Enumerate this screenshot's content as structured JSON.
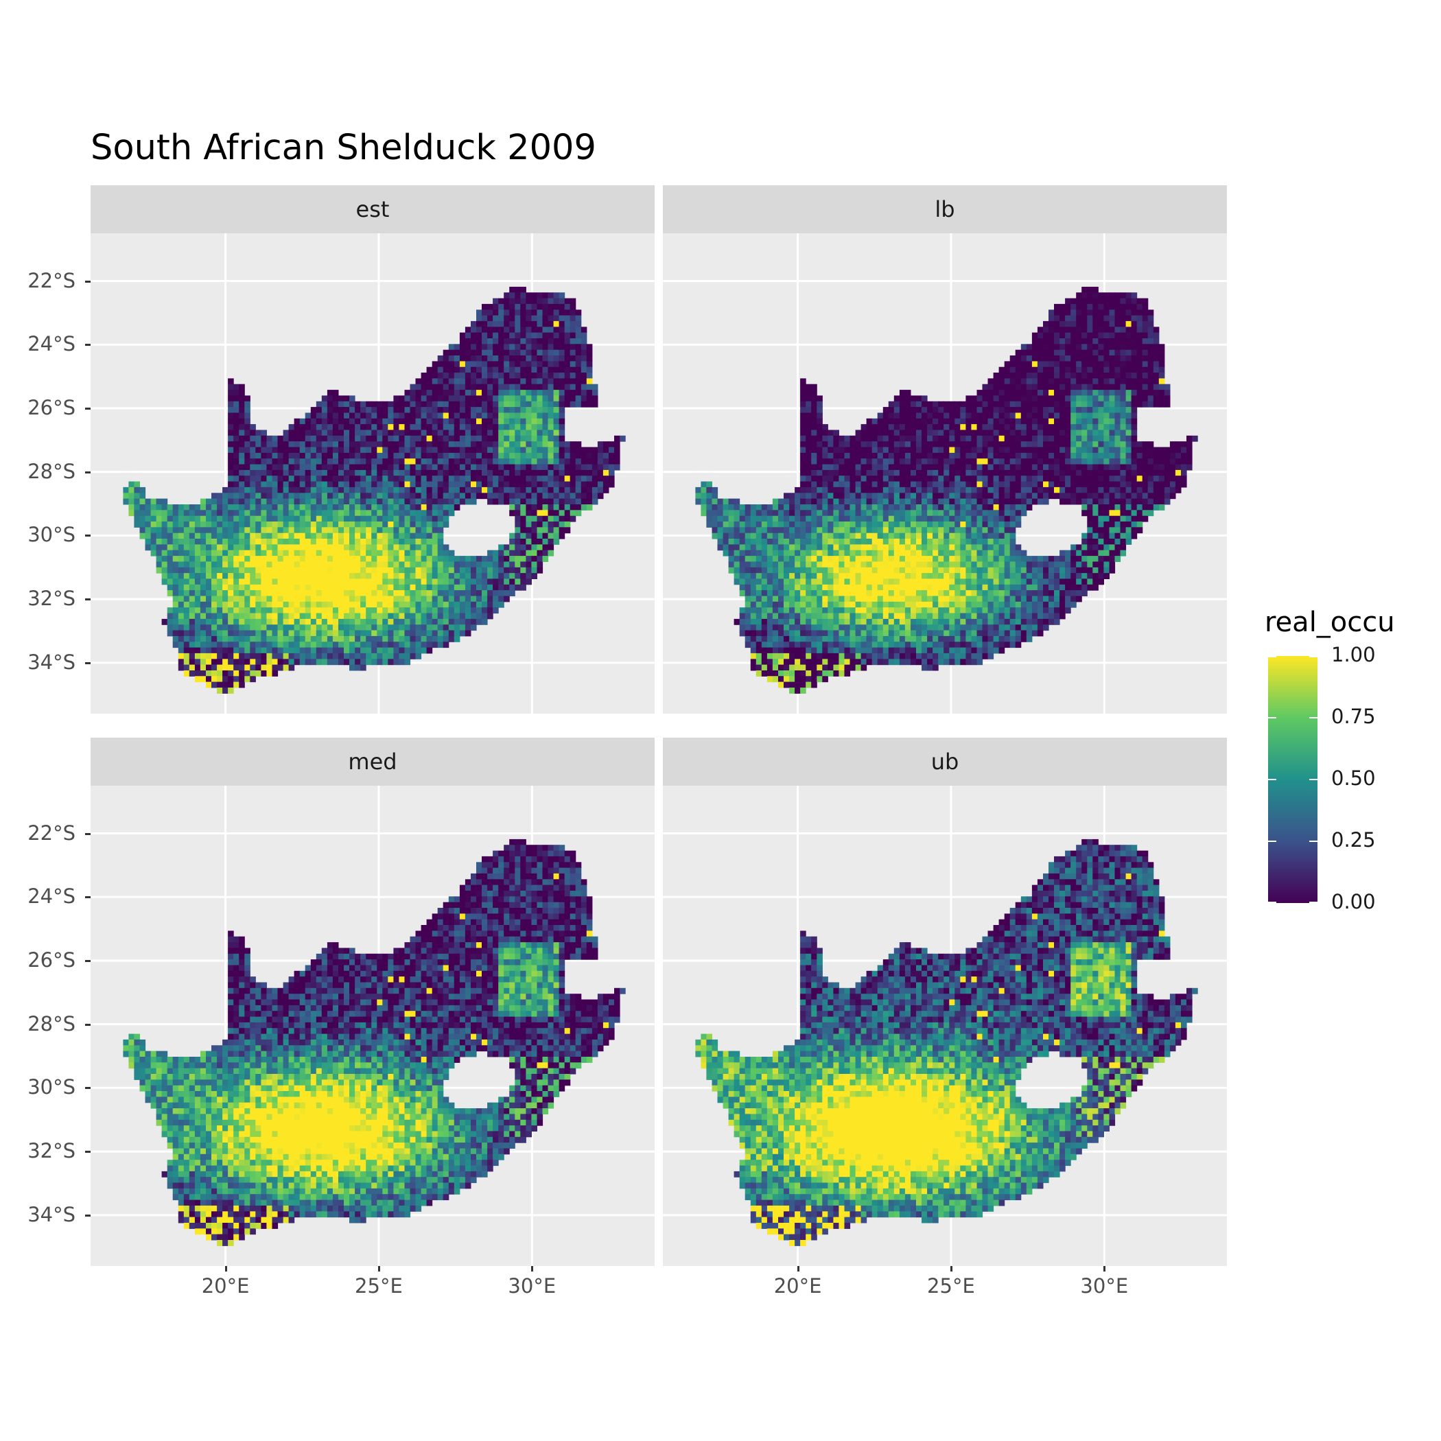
{
  "title": "South African Shelduck 2009",
  "panels": [
    {
      "label": "est",
      "mode": "est"
    },
    {
      "label": "lb",
      "mode": "lb"
    },
    {
      "label": "med",
      "mode": "med"
    },
    {
      "label": "ub",
      "mode": "ub"
    }
  ],
  "y_ticks": [
    "22°S",
    "24°S",
    "26°S",
    "28°S",
    "30°S",
    "32°S",
    "34°S"
  ],
  "x_ticks": [
    "20°E",
    "25°E",
    "30°E"
  ],
  "legend": {
    "title": "real_occu",
    "labels": [
      "1.00",
      "0.75",
      "0.50",
      "0.25",
      "0.00"
    ]
  },
  "chart_data": {
    "type": "heatmap",
    "title": "South African Shelduck 2009",
    "facets": [
      "est",
      "lb",
      "med",
      "ub"
    ],
    "xlim": [
      15.6,
      34.0
    ],
    "ylim": [
      -35.6,
      -20.5
    ],
    "x_ticks": [
      20,
      25,
      30
    ],
    "y_ticks": [
      -22,
      -24,
      -26,
      -28,
      -30,
      -32,
      -34
    ],
    "fill_variable": "real_occu",
    "fill_range": [
      0,
      1
    ],
    "colorscale": "viridis",
    "colors": [
      "#440154",
      "#3b528b",
      "#21918c",
      "#5ec962",
      "#fde725"
    ],
    "grid": true,
    "legend_position": "right"
  }
}
